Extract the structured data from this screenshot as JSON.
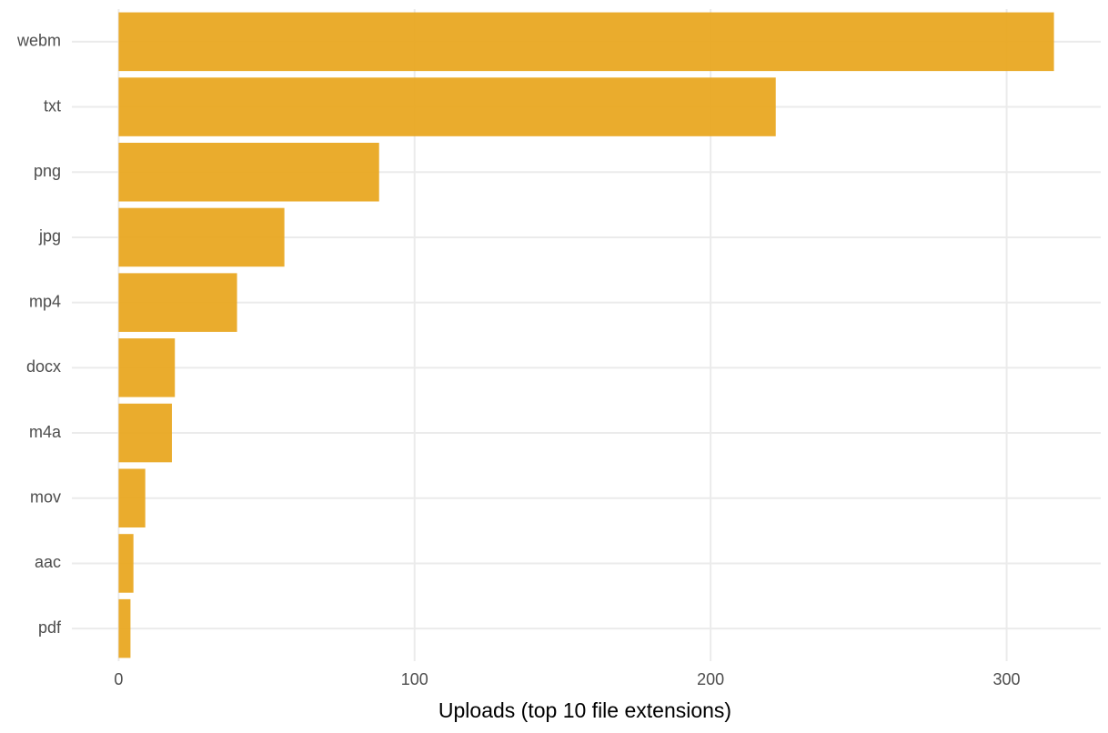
{
  "chart_data": {
    "type": "bar",
    "orientation": "horizontal",
    "x_label": "Uploads (top 10 file extensions)",
    "categories": [
      "webm",
      "txt",
      "png",
      "jpg",
      "mp4",
      "docx",
      "m4a",
      "mov",
      "aac",
      "pdf"
    ],
    "values": [
      316,
      222,
      88,
      56,
      40,
      19,
      18,
      9,
      5,
      4
    ],
    "color": "#e9a822",
    "xlim": [
      -15.8,
      331.8
    ],
    "xticks": [
      0,
      100,
      200,
      300
    ],
    "grid": true
  }
}
